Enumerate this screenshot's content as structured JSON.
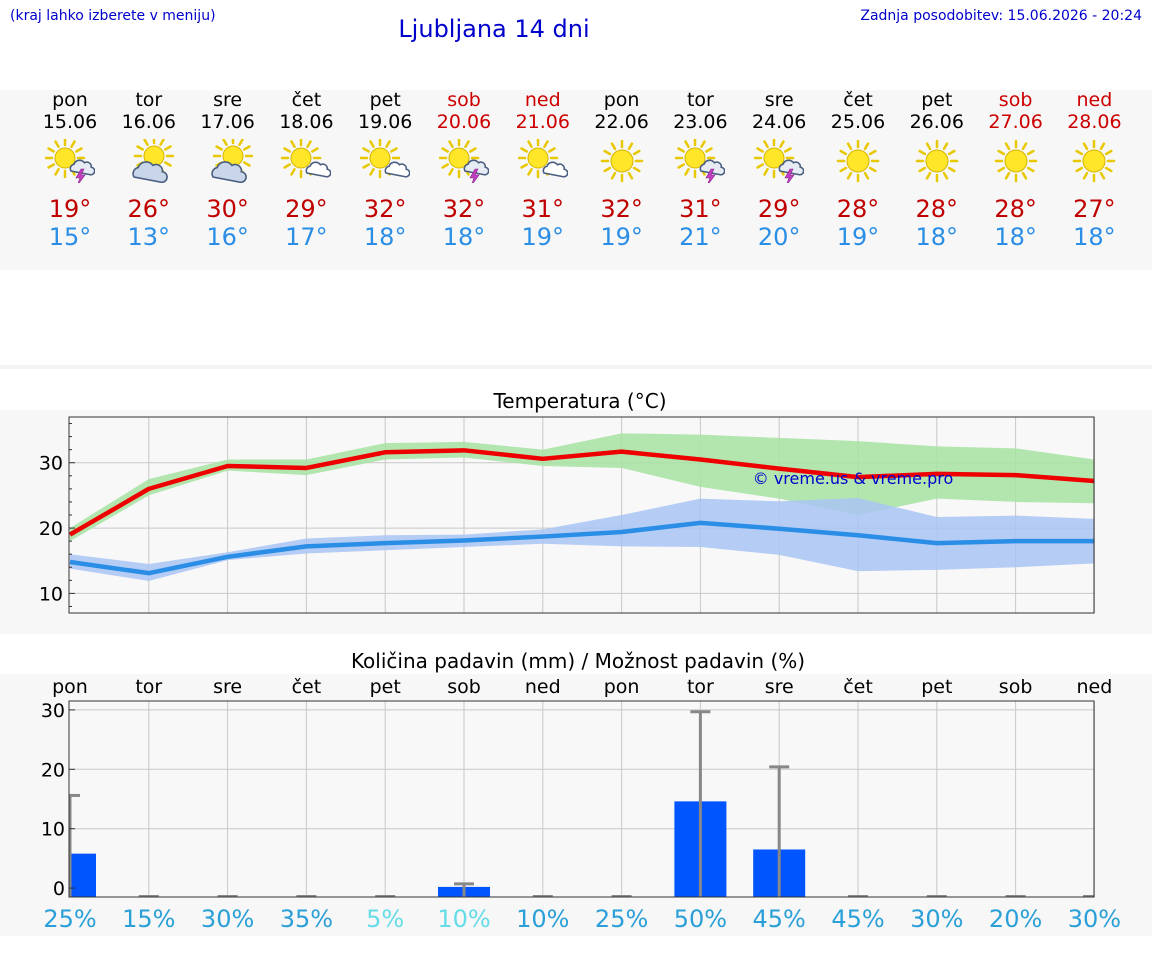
{
  "header": {
    "left_note": "(kraj lahko izberete v meniju)",
    "title": "Ljubljana 14 dni",
    "updated": "Zadnja posodobitev: 15.06.2026 - 20:24"
  },
  "days": [
    {
      "name": "pon",
      "date": "15.06",
      "weekend": false,
      "icon": "sun-cloud-storm-icon",
      "tmax": "19°",
      "tmin": "15°"
    },
    {
      "name": "tor",
      "date": "16.06",
      "weekend": false,
      "icon": "cloudy-sun-icon",
      "tmax": "26°",
      "tmin": "13°"
    },
    {
      "name": "sre",
      "date": "17.06",
      "weekend": false,
      "icon": "cloudy-sun-icon",
      "tmax": "30°",
      "tmin": "16°"
    },
    {
      "name": "čet",
      "date": "18.06",
      "weekend": false,
      "icon": "sun-small-cloud-icon",
      "tmax": "29°",
      "tmin": "17°"
    },
    {
      "name": "pet",
      "date": "19.06",
      "weekend": false,
      "icon": "sun-small-cloud-icon",
      "tmax": "32°",
      "tmin": "18°"
    },
    {
      "name": "sob",
      "date": "20.06",
      "weekend": true,
      "icon": "sun-cloud-storm-icon",
      "tmax": "32°",
      "tmin": "18°"
    },
    {
      "name": "ned",
      "date": "21.06",
      "weekend": true,
      "icon": "sun-small-cloud-icon",
      "tmax": "31°",
      "tmin": "19°"
    },
    {
      "name": "pon",
      "date": "22.06",
      "weekend": false,
      "icon": "sun-icon",
      "tmax": "32°",
      "tmin": "19°"
    },
    {
      "name": "tor",
      "date": "23.06",
      "weekend": false,
      "icon": "sun-cloud-storm-icon",
      "tmax": "31°",
      "tmin": "21°"
    },
    {
      "name": "sre",
      "date": "24.06",
      "weekend": false,
      "icon": "sun-cloud-storm-icon",
      "tmax": "29°",
      "tmin": "20°"
    },
    {
      "name": "čet",
      "date": "25.06",
      "weekend": false,
      "icon": "sun-icon",
      "tmax": "28°",
      "tmin": "19°"
    },
    {
      "name": "pet",
      "date": "26.06",
      "weekend": false,
      "icon": "sun-icon",
      "tmax": "28°",
      "tmin": "18°"
    },
    {
      "name": "sob",
      "date": "27.06",
      "weekend": true,
      "icon": "sun-icon",
      "tmax": "28°",
      "tmin": "18°"
    },
    {
      "name": "ned",
      "date": "28.06",
      "weekend": true,
      "icon": "sun-icon",
      "tmax": "27°",
      "tmin": "18°"
    }
  ],
  "colors": {
    "max_line": "#ee0000",
    "max_band": "#a6e3a1",
    "min_line": "#2a8ee6",
    "min_band": "#a9c4f5",
    "bar": "#0055ff",
    "whisker": "#888888",
    "title_blue": "#0000cc",
    "weekend_red": "#cc0000",
    "prob_dark": "#2a9fd8",
    "prob_light": "#66dce8"
  },
  "chart_data": [
    {
      "type": "line",
      "title": "Temperatura (°C)",
      "watermark": "© vreme.us & vreme.pro",
      "x": [
        0,
        1,
        2,
        3,
        4,
        5,
        6,
        7,
        8,
        9,
        10,
        11,
        12,
        13
      ],
      "ylim": [
        7,
        37
      ],
      "yticks": [
        10,
        20,
        30
      ],
      "grid": true,
      "series": [
        {
          "key": "max",
          "values": [
            19,
            26,
            29.5,
            29.2,
            31.6,
            31.9,
            30.6,
            31.7,
            30.5,
            29.1,
            27.8,
            28.3,
            28.1,
            27.2
          ],
          "upper": [
            20,
            27.5,
            30.5,
            30.5,
            33,
            33.2,
            32,
            34.5,
            34.3,
            33.8,
            33.3,
            32.5,
            32.2,
            30.5
          ],
          "lower": [
            18,
            25,
            28.8,
            28.1,
            30.5,
            30.8,
            29.5,
            29.2,
            26.3,
            24.5,
            22,
            24.5,
            24,
            23.8
          ]
        },
        {
          "key": "min",
          "values": [
            14.8,
            13.1,
            15.6,
            17.2,
            17.7,
            18.1,
            18.7,
            19.4,
            20.8,
            19.9,
            18.9,
            17.7,
            18,
            18
          ],
          "upper": [
            16,
            14.5,
            16.3,
            18.4,
            18.9,
            19,
            19.8,
            22,
            24.5,
            24.1,
            24.6,
            21.7,
            21.9,
            21.4
          ],
          "lower": [
            13.8,
            11.9,
            15.1,
            16.1,
            16.6,
            17.1,
            17.6,
            17.2,
            17.1,
            15.9,
            13.4,
            13.6,
            14,
            14.6
          ]
        }
      ]
    },
    {
      "type": "bar",
      "title": "Količina padavin (mm) / Možnost padavin (%)",
      "categories": [
        "pon",
        "tor",
        "sre",
        "čet",
        "pet",
        "sob",
        "ned",
        "pon",
        "tor",
        "sre",
        "čet",
        "pet",
        "sob",
        "ned"
      ],
      "values": [
        5.8,
        0,
        0,
        0,
        0,
        0.2,
        0,
        0,
        14.6,
        6.5,
        0,
        0,
        0,
        0
      ],
      "whisker_max": [
        15.6,
        0,
        0,
        0,
        0,
        0.7,
        0,
        0,
        29.7,
        20.4,
        0,
        0,
        0,
        0
      ],
      "ylim": [
        -1.5,
        31.5
      ],
      "yticks": [
        0,
        10,
        20,
        30
      ],
      "probability": [
        "25%",
        "15%",
        "30%",
        "35%",
        "5%",
        "10%",
        "10%",
        "25%",
        "50%",
        "45%",
        "45%",
        "30%",
        "20%",
        "30%"
      ],
      "probability_light": [
        false,
        false,
        false,
        false,
        true,
        true,
        false,
        false,
        false,
        false,
        false,
        false,
        false,
        false
      ]
    }
  ]
}
